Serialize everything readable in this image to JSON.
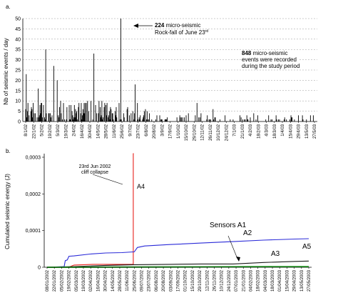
{
  "chart_data": [
    {
      "panel_label": "a.",
      "type": "bar",
      "ylabel": "Nb of seismic events / day",
      "ylim": [
        0,
        50
      ],
      "yticks": [
        0,
        5,
        10,
        15,
        20,
        25,
        30,
        35,
        40,
        45,
        50
      ],
      "grid": "horizontal dashed",
      "xtick_labels": [
        "8/1/02",
        "22/1/02",
        "5/2/02",
        "19/2/02",
        "5/3/02",
        "19/3/02",
        "2/4/02",
        "16/4/02",
        "30/4/02",
        "14/5/02",
        "28/5/02",
        "11/6/02",
        "25/6/02",
        "9/7/02",
        "23/7/02",
        "6/8/02",
        "20/8/02",
        "3/9/02",
        "17/9/02",
        "1/10/02",
        "15/10/02",
        "29/10/02",
        "12/11/02",
        "26/11/02",
        "10/12/02",
        "24/12/02",
        "7/1/03",
        "21/1/03",
        "4/2/03",
        "18/2/03",
        "4/3/03",
        "18/3/03",
        "1/4/03",
        "15/4/03",
        "29/4/03",
        "13/5/03",
        "27/5/03"
      ],
      "peaks": [
        {
          "x": "9/1/02",
          "y": 23
        },
        {
          "x": "30/1/02",
          "y": 16
        },
        {
          "x": "12/2/02",
          "y": 35
        },
        {
          "x": "26/2/02",
          "y": 27
        },
        {
          "x": "4/3/02",
          "y": 20
        },
        {
          "x": "7/5/02",
          "y": 33
        },
        {
          "x": "23/6/02",
          "y": 50
        },
        {
          "x": "18/7/02",
          "y": 18
        },
        {
          "x": "3/11/02",
          "y": 9
        },
        {
          "x": "1/12/02",
          "y": 6
        }
      ],
      "annotations": {
        "rockfall_count": "224",
        "rockfall_text_1": " micro-seismic",
        "rockfall_text_2": "Rock-fall of June 23",
        "rockfall_sup": "rd",
        "total_count": "848",
        "total_text_1": " micro-seismic",
        "total_text_2": "events  were recorded",
        "total_text_3": "during  the study period"
      }
    },
    {
      "panel_label": "b.",
      "type": "line",
      "ylabel": "Cumulated seismic energy (J)",
      "ylim": [
        0,
        0.0003
      ],
      "yticks": [
        "0",
        "0,0001",
        "0,0002",
        "0,0003"
      ],
      "xtick_labels": [
        "08/01/2002",
        "22/01/2002",
        "05/02/2002",
        "19/02/2002",
        "05/03/2002",
        "19/03/2002",
        "02/04/2002",
        "16/04/2002",
        "30/04/2002",
        "14/05/2002",
        "28/05/2002",
        "11/06/2002",
        "25/06/2002",
        "09/07/2002",
        "23/07/2002",
        "06/08/2002",
        "20/08/2002",
        "03/09/2002",
        "17/09/2002",
        "01/10/2002",
        "15/10/2002",
        "29/10/2002",
        "12/11/2002",
        "26/11/2002",
        "10/12/2002",
        "24/12/2002",
        "07/01/2003",
        "21/01/2003",
        "04/02/2003",
        "18/02/2003",
        "04/03/2003",
        "18/03/2003",
        "01/04/2003",
        "15/04/2003",
        "29/04/2003",
        "13/05/2003",
        "27/05/2003"
      ],
      "series": [
        {
          "name": "A4",
          "color": "#e8201c",
          "points": [
            [
              "08/01/2002",
              0
            ],
            [
              "20/02/2002",
              1e-06
            ],
            [
              "01/03/2002",
              6e-06
            ],
            [
              "08/04/2002",
              8e-06
            ],
            [
              "23/06/2002",
              8e-06
            ],
            [
              "23/06/2002",
              0.00031
            ],
            [
              "24/06/2002",
              0.00031
            ]
          ]
        },
        {
          "name": "A5",
          "color": "#2a2ad8",
          "points": [
            [
              "08/01/2002",
              0
            ],
            [
              "10/02/2002",
              2e-06
            ],
            [
              "12/02/2002",
              1.8e-05
            ],
            [
              "16/02/2002",
              2e-05
            ],
            [
              "19/02/2002",
              3e-05
            ],
            [
              "01/03/2002",
              3.1e-05
            ],
            [
              "01/04/2002",
              3.6e-05
            ],
            [
              "01/05/2002",
              3.9e-05
            ],
            [
              "01/06/2002",
              4e-05
            ],
            [
              "25/06/2002",
              4.2e-05
            ],
            [
              "01/07/2002",
              5.4e-05
            ],
            [
              "15/07/2002",
              5.8e-05
            ],
            [
              "01/09/2002",
              6.2e-05
            ],
            [
              "01/11/2002",
              6.6e-05
            ],
            [
              "01/01/2003",
              7e-05
            ],
            [
              "01/03/2003",
              7.4e-05
            ],
            [
              "01/05/2003",
              7.7e-05
            ],
            [
              "27/05/2003",
              7.8e-05
            ]
          ]
        },
        {
          "name": "A3",
          "color": "#1a1a1a",
          "points": [
            [
              "08/01/2002",
              0
            ],
            [
              "01/03/2002",
              2e-06
            ],
            [
              "01/05/2002",
              5e-06
            ],
            [
              "25/06/2002",
              7e-06
            ],
            [
              "01/09/2002",
              8e-06
            ],
            [
              "01/11/2002",
              9e-06
            ],
            [
              "01/01/2003",
              9e-06
            ],
            [
              "01/03/2003",
              1.3e-05
            ],
            [
              "01/05/2003",
              1.6e-05
            ],
            [
              "27/05/2003",
              1.7e-05
            ]
          ]
        },
        {
          "name": "A2",
          "color": "#9a9a9a",
          "points": [
            [
              "08/01/2002",
              0
            ],
            [
              "25/06/2002",
              2e-06
            ],
            [
              "27/05/2003",
              3e-06
            ]
          ]
        },
        {
          "name": "A1",
          "color": "#2fb82f",
          "points": [
            [
              "08/01/2002",
              0
            ],
            [
              "27/05/2003",
              1.5e-06
            ]
          ]
        }
      ],
      "annotations": {
        "collapse_1": "23rd Jun 2002",
        "collapse_2": "cliff collapse",
        "label_A4": "A4",
        "label_sensors": "Sensors A1",
        "label_A2": "A2",
        "label_A3": "A3",
        "label_A5": "A5"
      }
    }
  ]
}
